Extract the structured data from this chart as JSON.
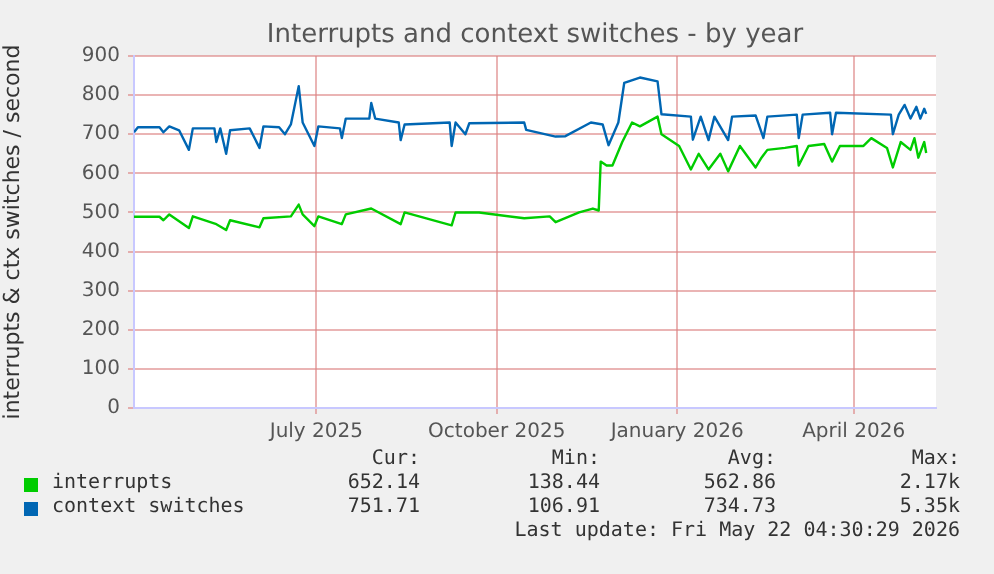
{
  "chart_data": {
    "type": "line",
    "title": "Interrupts and context switches - by year",
    "ylabel": "interrupts & ctx switches / second",
    "xlim": [
      "2025-04-13",
      "2026-05-27"
    ],
    "xticks": [
      {
        "value": "2025-07-15",
        "label": "July 2025"
      },
      {
        "value": "2025-10-15",
        "label": "October 2025"
      },
      {
        "value": "2026-01-15",
        "label": "January 2026"
      },
      {
        "value": "2026-04-15",
        "label": "April 2026"
      }
    ],
    "ylim": [
      0,
      900
    ],
    "yticks": [
      0,
      100,
      200,
      300,
      400,
      500,
      600,
      700,
      800,
      900
    ],
    "grid": true,
    "legend": "bottom",
    "marker": "none",
    "line_style": "solid",
    "series": [
      {
        "name": "interrupts",
        "color": "#00cc00",
        "x": [
          "2025-04-13",
          "2025-04-26",
          "2025-04-28",
          "2025-05-01",
          "2025-05-11",
          "2025-05-13",
          "2025-05-25",
          "2025-05-30",
          "2025-06-01",
          "2025-06-16",
          "2025-06-18",
          "2025-07-02",
          "2025-07-06",
          "2025-07-08",
          "2025-07-14",
          "2025-07-16",
          "2025-07-28",
          "2025-07-30",
          "2025-08-12",
          "2025-08-27",
          "2025-08-29",
          "2025-09-22",
          "2025-09-24",
          "2025-10-06",
          "2025-10-29",
          "2025-11-11",
          "2025-11-14",
          "2025-11-26",
          "2025-12-03",
          "2025-12-06",
          "2025-12-07",
          "2025-12-10",
          "2025-12-13",
          "2025-12-18",
          "2025-12-23",
          "2025-12-27",
          "2026-01-05",
          "2026-01-07",
          "2026-01-16",
          "2026-01-22",
          "2026-01-26",
          "2026-01-31",
          "2026-02-06",
          "2026-02-10",
          "2026-02-16",
          "2026-02-24",
          "2026-02-27",
          "2026-03-02",
          "2026-03-11",
          "2026-03-17",
          "2026-03-18",
          "2026-03-23",
          "2026-03-31",
          "2026-04-04",
          "2026-04-08",
          "2026-04-20",
          "2026-04-24",
          "2026-05-02",
          "2026-05-05",
          "2026-05-09",
          "2026-05-14",
          "2026-05-16",
          "2026-05-18",
          "2026-05-21",
          "2026-05-22"
        ],
        "values": [
          489,
          489,
          480,
          495,
          460,
          490,
          470,
          455,
          480,
          462,
          485,
          490,
          520,
          495,
          465,
          490,
          470,
          495,
          510,
          470,
          500,
          467,
          500,
          500,
          485,
          490,
          475,
          500,
          510,
          505,
          630,
          620,
          620,
          680,
          730,
          720,
          745,
          700,
          670,
          610,
          650,
          610,
          650,
          605,
          670,
          615,
          640,
          660,
          665,
          670,
          620,
          670,
          675,
          630,
          670,
          670,
          690,
          665,
          615,
          680,
          660,
          690,
          640,
          680,
          652
        ]
      },
      {
        "name": "context switches",
        "color": "#0066b3",
        "x": [
          "2025-04-13",
          "2025-04-15",
          "2025-04-26",
          "2025-04-28",
          "2025-05-01",
          "2025-05-06",
          "2025-05-11",
          "2025-05-13",
          "2025-05-24",
          "2025-05-25",
          "2025-05-27",
          "2025-05-30",
          "2025-06-01",
          "2025-06-11",
          "2025-06-16",
          "2025-06-18",
          "2025-06-26",
          "2025-06-29",
          "2025-07-02",
          "2025-07-06",
          "2025-07-08",
          "2025-07-14",
          "2025-07-16",
          "2025-07-27",
          "2025-07-28",
          "2025-07-30",
          "2025-08-11",
          "2025-08-12",
          "2025-08-14",
          "2025-08-26",
          "2025-08-27",
          "2025-08-29",
          "2025-09-21",
          "2025-09-22",
          "2025-09-24",
          "2025-09-29",
          "2025-10-01",
          "2025-10-29",
          "2025-10-30",
          "2025-11-14",
          "2025-11-19",
          "2025-12-02",
          "2025-12-08",
          "2025-12-11",
          "2025-12-16",
          "2025-12-19",
          "2025-12-27",
          "2026-01-05",
          "2026-01-07",
          "2026-01-22",
          "2026-01-23",
          "2026-01-27",
          "2026-01-31",
          "2026-02-03",
          "2026-02-10",
          "2026-02-12",
          "2026-02-24",
          "2026-02-28",
          "2026-03-02",
          "2026-03-17",
          "2026-03-18",
          "2026-03-20",
          "2026-04-03",
          "2026-04-04",
          "2026-04-06",
          "2026-05-04",
          "2026-05-05",
          "2026-05-08",
          "2026-05-11",
          "2026-05-14",
          "2026-05-17",
          "2026-05-19",
          "2026-05-21",
          "2026-05-22"
        ],
        "values": [
          705,
          718,
          718,
          705,
          720,
          710,
          660,
          715,
          715,
          680,
          715,
          650,
          710,
          715,
          665,
          720,
          718,
          700,
          725,
          823,
          730,
          670,
          720,
          715,
          690,
          740,
          740,
          780,
          740,
          730,
          685,
          725,
          730,
          670,
          730,
          700,
          728,
          730,
          711,
          694,
          695,
          730,
          725,
          672,
          730,
          831,
          845,
          835,
          751,
          745,
          686,
          745,
          685,
          745,
          685,
          745,
          748,
          690,
          745,
          750,
          690,
          750,
          755,
          700,
          755,
          750,
          700,
          750,
          775,
          740,
          770,
          740,
          765,
          752
        ]
      }
    ],
    "annotations": [
      "Cur:",
      "Min:",
      "Avg:",
      "Max:",
      "652.14",
      "138.44",
      "562.86",
      "2.17k",
      "751.71",
      "106.91",
      "734.73",
      "5.35k",
      "Last update: Fri May 22 04:30:29 2026"
    ]
  }
}
